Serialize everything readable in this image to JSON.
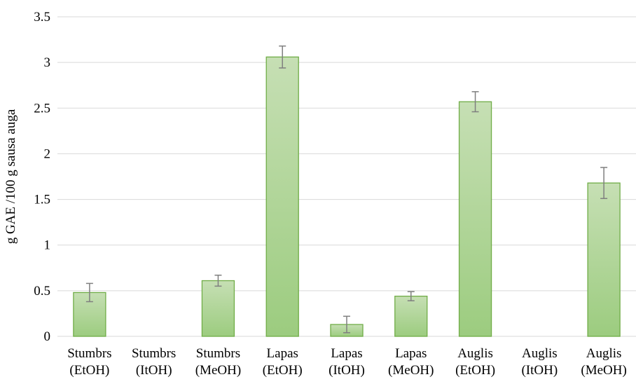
{
  "chart_data": {
    "type": "bar",
    "title": "",
    "xlabel": "",
    "ylabel": "g GAE /100 g sausa auga",
    "ylim": [
      0,
      3.5
    ],
    "yticks": [
      "0",
      "0.5",
      "1",
      "1.5",
      "2",
      "2.5",
      "3",
      "3.5"
    ],
    "grid": true,
    "legend": "none",
    "categories": [
      [
        "Stumbrs",
        "(EtOH)"
      ],
      [
        "Stumbrs",
        "(ItOH)"
      ],
      [
        "Stumbrs",
        "(MeOH)"
      ],
      [
        "Lapas",
        "(EtOH)"
      ],
      [
        "Lapas",
        "(ItOH)"
      ],
      [
        "Lapas",
        "(MeOH)"
      ],
      [
        "Auglis",
        "(EtOH)"
      ],
      [
        "Auglis",
        "(ItOH)"
      ],
      [
        "Auglis",
        "(MeOH)"
      ]
    ],
    "values": [
      0.48,
      null,
      0.61,
      3.06,
      0.13,
      0.44,
      2.57,
      null,
      1.68
    ],
    "errors": [
      0.1,
      null,
      0.06,
      0.12,
      0.09,
      0.05,
      0.11,
      null,
      0.17
    ],
    "colors": {
      "bar_top": "#c6dfb4",
      "bar_bottom": "#9ccc7f",
      "bar_edge": "#70ad47",
      "grid": "#d9d9d9",
      "axis": "#d9d9d9",
      "error": "#7f7f7f"
    }
  }
}
